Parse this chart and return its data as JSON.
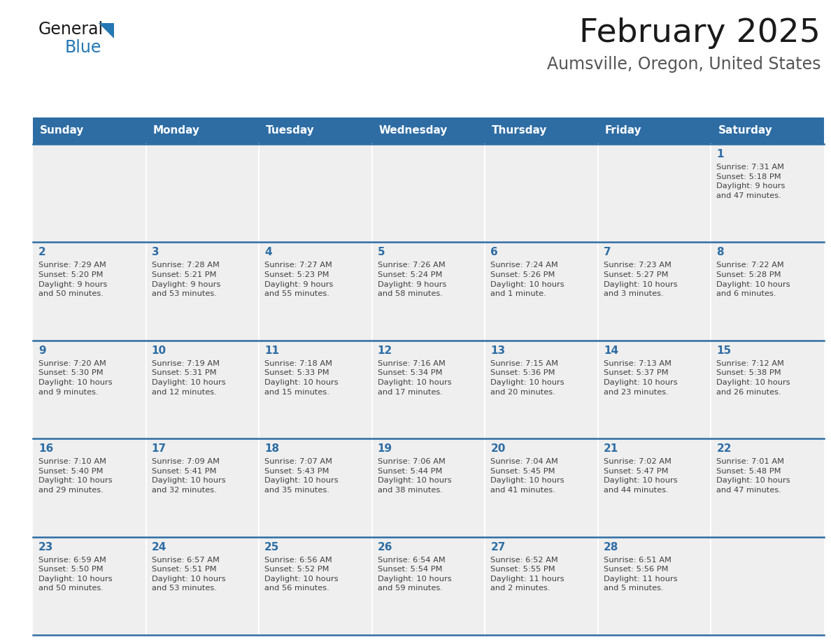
{
  "title": "February 2025",
  "subtitle": "Aumsville, Oregon, United States",
  "header_bg": "#2E6DA4",
  "header_text": "#FFFFFF",
  "cell_bg": "#EFEFEF",
  "cell_bg_empty": "#FFFFFF",
  "day_number_color": "#2E6DA4",
  "cell_text_color": "#404040",
  "border_color": "#2E6DA4",
  "row_sep_color": "#FFFFFF",
  "days_of_week": [
    "Sunday",
    "Monday",
    "Tuesday",
    "Wednesday",
    "Thursday",
    "Friday",
    "Saturday"
  ],
  "weeks": [
    [
      {
        "day": null,
        "info": null
      },
      {
        "day": null,
        "info": null
      },
      {
        "day": null,
        "info": null
      },
      {
        "day": null,
        "info": null
      },
      {
        "day": null,
        "info": null
      },
      {
        "day": null,
        "info": null
      },
      {
        "day": 1,
        "info": "Sunrise: 7:31 AM\nSunset: 5:18 PM\nDaylight: 9 hours\nand 47 minutes."
      }
    ],
    [
      {
        "day": 2,
        "info": "Sunrise: 7:29 AM\nSunset: 5:20 PM\nDaylight: 9 hours\nand 50 minutes."
      },
      {
        "day": 3,
        "info": "Sunrise: 7:28 AM\nSunset: 5:21 PM\nDaylight: 9 hours\nand 53 minutes."
      },
      {
        "day": 4,
        "info": "Sunrise: 7:27 AM\nSunset: 5:23 PM\nDaylight: 9 hours\nand 55 minutes."
      },
      {
        "day": 5,
        "info": "Sunrise: 7:26 AM\nSunset: 5:24 PM\nDaylight: 9 hours\nand 58 minutes."
      },
      {
        "day": 6,
        "info": "Sunrise: 7:24 AM\nSunset: 5:26 PM\nDaylight: 10 hours\nand 1 minute."
      },
      {
        "day": 7,
        "info": "Sunrise: 7:23 AM\nSunset: 5:27 PM\nDaylight: 10 hours\nand 3 minutes."
      },
      {
        "day": 8,
        "info": "Sunrise: 7:22 AM\nSunset: 5:28 PM\nDaylight: 10 hours\nand 6 minutes."
      }
    ],
    [
      {
        "day": 9,
        "info": "Sunrise: 7:20 AM\nSunset: 5:30 PM\nDaylight: 10 hours\nand 9 minutes."
      },
      {
        "day": 10,
        "info": "Sunrise: 7:19 AM\nSunset: 5:31 PM\nDaylight: 10 hours\nand 12 minutes."
      },
      {
        "day": 11,
        "info": "Sunrise: 7:18 AM\nSunset: 5:33 PM\nDaylight: 10 hours\nand 15 minutes."
      },
      {
        "day": 12,
        "info": "Sunrise: 7:16 AM\nSunset: 5:34 PM\nDaylight: 10 hours\nand 17 minutes."
      },
      {
        "day": 13,
        "info": "Sunrise: 7:15 AM\nSunset: 5:36 PM\nDaylight: 10 hours\nand 20 minutes."
      },
      {
        "day": 14,
        "info": "Sunrise: 7:13 AM\nSunset: 5:37 PM\nDaylight: 10 hours\nand 23 minutes."
      },
      {
        "day": 15,
        "info": "Sunrise: 7:12 AM\nSunset: 5:38 PM\nDaylight: 10 hours\nand 26 minutes."
      }
    ],
    [
      {
        "day": 16,
        "info": "Sunrise: 7:10 AM\nSunset: 5:40 PM\nDaylight: 10 hours\nand 29 minutes."
      },
      {
        "day": 17,
        "info": "Sunrise: 7:09 AM\nSunset: 5:41 PM\nDaylight: 10 hours\nand 32 minutes."
      },
      {
        "day": 18,
        "info": "Sunrise: 7:07 AM\nSunset: 5:43 PM\nDaylight: 10 hours\nand 35 minutes."
      },
      {
        "day": 19,
        "info": "Sunrise: 7:06 AM\nSunset: 5:44 PM\nDaylight: 10 hours\nand 38 minutes."
      },
      {
        "day": 20,
        "info": "Sunrise: 7:04 AM\nSunset: 5:45 PM\nDaylight: 10 hours\nand 41 minutes."
      },
      {
        "day": 21,
        "info": "Sunrise: 7:02 AM\nSunset: 5:47 PM\nDaylight: 10 hours\nand 44 minutes."
      },
      {
        "day": 22,
        "info": "Sunrise: 7:01 AM\nSunset: 5:48 PM\nDaylight: 10 hours\nand 47 minutes."
      }
    ],
    [
      {
        "day": 23,
        "info": "Sunrise: 6:59 AM\nSunset: 5:50 PM\nDaylight: 10 hours\nand 50 minutes."
      },
      {
        "day": 24,
        "info": "Sunrise: 6:57 AM\nSunset: 5:51 PM\nDaylight: 10 hours\nand 53 minutes."
      },
      {
        "day": 25,
        "info": "Sunrise: 6:56 AM\nSunset: 5:52 PM\nDaylight: 10 hours\nand 56 minutes."
      },
      {
        "day": 26,
        "info": "Sunrise: 6:54 AM\nSunset: 5:54 PM\nDaylight: 10 hours\nand 59 minutes."
      },
      {
        "day": 27,
        "info": "Sunrise: 6:52 AM\nSunset: 5:55 PM\nDaylight: 11 hours\nand 2 minutes."
      },
      {
        "day": 28,
        "info": "Sunrise: 6:51 AM\nSunset: 5:56 PM\nDaylight: 11 hours\nand 5 minutes."
      },
      {
        "day": null,
        "info": null
      }
    ]
  ],
  "logo_color_general": "#1a1a1a",
  "logo_color_blue": "#2477B3",
  "logo_triangle_color": "#2477B3",
  "title_color": "#1a1a1a",
  "subtitle_color": "#555555"
}
